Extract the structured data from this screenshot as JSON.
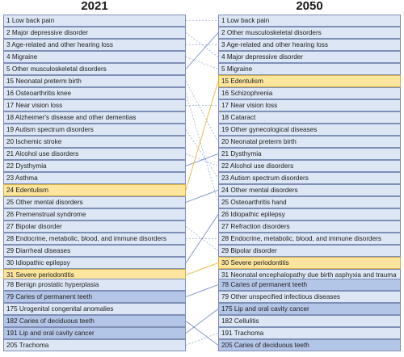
{
  "chart_data": {
    "type": "table",
    "columns": [
      "2021",
      "2050"
    ],
    "links_highlight_color": "#e8c25a",
    "links_color": "#5b78b8",
    "groups": [
      {
        "left": [
          {
            "rank": 1,
            "label": "1 Low back pain",
            "tone": "light"
          },
          {
            "rank": 2,
            "label": "2 Major depressive disorder",
            "tone": "light"
          },
          {
            "rank": 3,
            "label": "3 Age-related and other hearing loss",
            "tone": "light"
          },
          {
            "rank": 4,
            "label": "4 Migraine",
            "tone": "light"
          },
          {
            "rank": 5,
            "label": "5 Other musculoskeletal disorders",
            "tone": "light"
          }
        ],
        "right": [
          {
            "rank": 1,
            "label": "1 Low back pain",
            "tone": "light"
          },
          {
            "rank": 2,
            "label": "2 Other musculoskeletal disorders",
            "tone": "light"
          },
          {
            "rank": 3,
            "label": "3 Age-related and other hearing loss",
            "tone": "light"
          },
          {
            "rank": 4,
            "label": "4 Major depressive disorder",
            "tone": "light"
          },
          {
            "rank": 5,
            "label": "5 Migraine",
            "tone": "light"
          }
        ],
        "links": [
          [
            1,
            1,
            "dotted"
          ],
          [
            2,
            4,
            "dotted"
          ],
          [
            3,
            3,
            "dotted"
          ],
          [
            4,
            5,
            "dotted"
          ],
          [
            5,
            2,
            "solid"
          ]
        ]
      },
      {
        "left": [
          {
            "rank": 15,
            "label": "15 Neonatal preterm birth",
            "tone": "light"
          },
          {
            "rank": 16,
            "label": "16 Osteoarthritis knee",
            "tone": "light"
          },
          {
            "rank": 17,
            "label": "17 Near vision loss",
            "tone": "light"
          },
          {
            "rank": 18,
            "label": "18 Alzheimer's disease and other dementias",
            "tone": "light"
          },
          {
            "rank": 19,
            "label": "19 Autism spectrum disorders",
            "tone": "light"
          },
          {
            "rank": 20,
            "label": "20 Ischemic stroke",
            "tone": "light"
          },
          {
            "rank": 21,
            "label": "21 Alcohol use disorders",
            "tone": "light"
          },
          {
            "rank": 22,
            "label": "22 Dysthymia",
            "tone": "light"
          },
          {
            "rank": 23,
            "label": "23 Asthma",
            "tone": "light"
          },
          {
            "rank": 24,
            "label": "24 Edentulism",
            "tone": "highlight"
          },
          {
            "rank": 25,
            "label": "25 Other mental disorders",
            "tone": "light"
          },
          {
            "rank": 26,
            "label": "26 Premenstrual syndrome",
            "tone": "light"
          },
          {
            "rank": 27,
            "label": "27 Bipolar disorder",
            "tone": "light"
          },
          {
            "rank": 28,
            "label": "28 Endocrine, metabolic, blood, and immune disorders",
            "tone": "light"
          },
          {
            "rank": 29,
            "label": "29 Diarrheal diseases",
            "tone": "light"
          },
          {
            "rank": 30,
            "label": "30 Idiopathic epilepsy",
            "tone": "light"
          },
          {
            "rank": 31,
            "label": "31 Severe periodontitis",
            "tone": "highlight"
          }
        ],
        "right": [
          {
            "rank": 15,
            "label": "15 Edentulism",
            "tone": "highlight"
          },
          {
            "rank": 16,
            "label": "16 Schizophrenia",
            "tone": "light"
          },
          {
            "rank": 17,
            "label": "17 Near vision loss",
            "tone": "light"
          },
          {
            "rank": 18,
            "label": "18 Cataract",
            "tone": "light"
          },
          {
            "rank": 19,
            "label": "19 Other gynecological diseases",
            "tone": "light"
          },
          {
            "rank": 20,
            "label": "20 Neonatal preterm birth",
            "tone": "light"
          },
          {
            "rank": 21,
            "label": "21 Dysthymia",
            "tone": "light"
          },
          {
            "rank": 22,
            "label": "22 Alcohol use disorders",
            "tone": "light"
          },
          {
            "rank": 23,
            "label": "23 Autism spectrum disorders",
            "tone": "light"
          },
          {
            "rank": 24,
            "label": "24 Other mental disorders",
            "tone": "light"
          },
          {
            "rank": 25,
            "label": "25 Osteoarthritis hand",
            "tone": "light"
          },
          {
            "rank": 26,
            "label": "26 Idiopathic epilepsy",
            "tone": "light"
          },
          {
            "rank": 27,
            "label": "27 Refraction disorders",
            "tone": "light"
          },
          {
            "rank": 28,
            "label": "28 Endocrine, metabolic, blood, and immune disorders",
            "tone": "light"
          },
          {
            "rank": 29,
            "label": "29 Bipolar disorder",
            "tone": "light"
          },
          {
            "rank": 30,
            "label": "30 Severe periodontitis",
            "tone": "highlight"
          },
          {
            "rank": 31,
            "label": "31 Neonatal encephalopathy due birth asphyxia and trauma",
            "tone": "light"
          }
        ],
        "links": [
          [
            15,
            20,
            "dotted"
          ],
          [
            16,
            25,
            "dotted"
          ],
          [
            17,
            17,
            "dotted"
          ],
          [
            19,
            23,
            "dotted"
          ],
          [
            21,
            22,
            "dotted"
          ],
          [
            22,
            21,
            "solid"
          ],
          [
            24,
            15,
            "highlight"
          ],
          [
            25,
            24,
            "solid"
          ],
          [
            27,
            29,
            "dotted"
          ],
          [
            28,
            28,
            "dotted"
          ],
          [
            30,
            26,
            "solid"
          ],
          [
            31,
            30,
            "highlight"
          ]
        ]
      },
      {
        "left": [
          {
            "rank": 78,
            "label": "78 Benign prostatic hyperplasia",
            "tone": "light"
          },
          {
            "rank": 79,
            "label": "79 Caries of permanent teeth",
            "tone": "mid"
          },
          {
            "rank": 175,
            "label": "175 Urogenital congenital anomalies",
            "tone": "light"
          },
          {
            "rank": 182,
            "label": "182 Caries of deciduous teeth",
            "tone": "mid"
          },
          {
            "rank": 191,
            "label": "191 Lip and oral cavity cancer",
            "tone": "mid"
          },
          {
            "rank": 205,
            "label": "205 Trachoma",
            "tone": "light"
          }
        ],
        "right": [
          {
            "rank": 78,
            "label": "78 Caries of permanent teeth",
            "tone": "mid"
          },
          {
            "rank": 79,
            "label": "79 Other unspecified infectious diseases",
            "tone": "light"
          },
          {
            "rank": 175,
            "label": "175 Lip and oral cavity cancer",
            "tone": "mid"
          },
          {
            "rank": 182,
            "label": "182 Cellulitis",
            "tone": "light"
          },
          {
            "rank": 191,
            "label": "191 Trachoma",
            "tone": "light"
          },
          {
            "rank": 205,
            "label": "205 Caries of deciduous teeth",
            "tone": "mid"
          }
        ],
        "links": [
          [
            79,
            78,
            "solid"
          ],
          [
            182,
            205,
            "solid"
          ],
          [
            191,
            175,
            "solid"
          ],
          [
            205,
            191,
            "dotted"
          ]
        ]
      }
    ]
  }
}
